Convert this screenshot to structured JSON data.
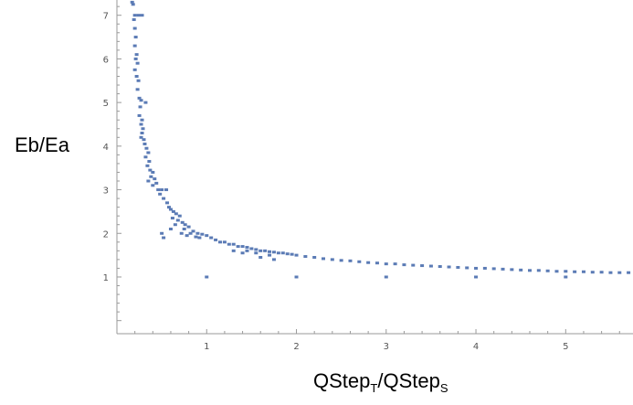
{
  "chart_data": {
    "type": "scatter",
    "title": "",
    "xlabel": {
      "base1": "QStep",
      "sub1": "T",
      "sep": "/",
      "base2": "QStep",
      "sub2": "S"
    },
    "ylabel": "Eb/Ea",
    "xlim": [
      0,
      5.75
    ],
    "ylim": [
      -0.3,
      7.35
    ],
    "xticks": [
      "1",
      "2",
      "3",
      "4",
      "5"
    ],
    "yticks": [
      "1",
      "2",
      "3",
      "4",
      "5",
      "6",
      "7"
    ],
    "grid": false,
    "marker_color": "#5b7bb5",
    "series": [
      {
        "points": [
          [
            0.17,
            7.3
          ],
          [
            0.18,
            7.25
          ],
          [
            0.2,
            7.0
          ],
          [
            0.24,
            7.0
          ],
          [
            0.28,
            7.0
          ],
          [
            0.19,
            6.9
          ],
          [
            0.2,
            6.7
          ],
          [
            0.21,
            6.5
          ],
          [
            0.2,
            6.3
          ],
          [
            0.22,
            6.1
          ],
          [
            0.21,
            6.0
          ],
          [
            0.23,
            5.9
          ],
          [
            0.2,
            5.75
          ],
          [
            0.22,
            5.6
          ],
          [
            0.24,
            5.5
          ],
          [
            0.23,
            5.3
          ],
          [
            0.25,
            5.1
          ],
          [
            0.27,
            5.05
          ],
          [
            0.32,
            5.0
          ],
          [
            0.26,
            4.9
          ],
          [
            0.25,
            4.7
          ],
          [
            0.28,
            4.6
          ],
          [
            0.27,
            4.5
          ],
          [
            0.29,
            4.4
          ],
          [
            0.28,
            4.3
          ],
          [
            0.27,
            4.2
          ],
          [
            0.3,
            4.15
          ],
          [
            0.31,
            4.05
          ],
          [
            0.33,
            3.95
          ],
          [
            0.35,
            3.85
          ],
          [
            0.32,
            3.75
          ],
          [
            0.36,
            3.65
          ],
          [
            0.34,
            3.55
          ],
          [
            0.37,
            3.45
          ],
          [
            0.4,
            3.4
          ],
          [
            0.38,
            3.3
          ],
          [
            0.35,
            3.2
          ],
          [
            0.42,
            3.25
          ],
          [
            0.44,
            3.15
          ],
          [
            0.4,
            3.1
          ],
          [
            0.46,
            3.0
          ],
          [
            0.5,
            3.0
          ],
          [
            0.55,
            3.0
          ],
          [
            0.48,
            2.9
          ],
          [
            0.52,
            2.8
          ],
          [
            0.56,
            2.7
          ],
          [
            0.58,
            2.6
          ],
          [
            0.6,
            2.55
          ],
          [
            0.63,
            2.5
          ],
          [
            0.66,
            2.45
          ],
          [
            0.7,
            2.4
          ],
          [
            0.62,
            2.35
          ],
          [
            0.68,
            2.3
          ],
          [
            0.73,
            2.25
          ],
          [
            0.76,
            2.2
          ],
          [
            0.8,
            2.15
          ],
          [
            0.75,
            2.1
          ],
          [
            0.85,
            2.05
          ],
          [
            0.9,
            2.0
          ],
          [
            0.95,
            1.98
          ],
          [
            0.5,
            2.0
          ],
          [
            0.52,
            1.9
          ],
          [
            0.6,
            2.1
          ],
          [
            0.65,
            2.2
          ],
          [
            0.72,
            2.0
          ],
          [
            0.78,
            1.95
          ],
          [
            0.82,
            2.0
          ],
          [
            0.88,
            1.92
          ],
          [
            0.92,
            1.9
          ],
          [
            1.0,
            1.95
          ],
          [
            1.05,
            1.9
          ],
          [
            1.1,
            1.85
          ],
          [
            1.15,
            1.8
          ],
          [
            1.2,
            1.8
          ],
          [
            1.25,
            1.75
          ],
          [
            1.3,
            1.75
          ],
          [
            1.35,
            1.7
          ],
          [
            1.4,
            1.7
          ],
          [
            1.45,
            1.68
          ],
          [
            1.5,
            1.65
          ],
          [
            1.55,
            1.63
          ],
          [
            1.6,
            1.6
          ],
          [
            1.65,
            1.6
          ],
          [
            1.7,
            1.58
          ],
          [
            1.75,
            1.57
          ],
          [
            1.8,
            1.55
          ],
          [
            1.85,
            1.55
          ],
          [
            1.9,
            1.53
          ],
          [
            1.95,
            1.52
          ],
          [
            2.0,
            1.5
          ],
          [
            1.3,
            1.6
          ],
          [
            1.4,
            1.55
          ],
          [
            1.6,
            1.45
          ],
          [
            1.7,
            1.5
          ],
          [
            1.75,
            1.4
          ],
          [
            1.45,
            1.6
          ],
          [
            1.55,
            1.55
          ],
          [
            2.1,
            1.47
          ],
          [
            2.2,
            1.45
          ],
          [
            2.3,
            1.42
          ],
          [
            2.4,
            1.4
          ],
          [
            2.5,
            1.38
          ],
          [
            2.6,
            1.37
          ],
          [
            2.7,
            1.35
          ],
          [
            2.8,
            1.33
          ],
          [
            2.9,
            1.32
          ],
          [
            3.0,
            1.3
          ],
          [
            3.1,
            1.3
          ],
          [
            3.2,
            1.28
          ],
          [
            3.3,
            1.27
          ],
          [
            3.4,
            1.26
          ],
          [
            3.5,
            1.25
          ],
          [
            3.6,
            1.24
          ],
          [
            3.7,
            1.23
          ],
          [
            3.8,
            1.22
          ],
          [
            3.9,
            1.21
          ],
          [
            4.0,
            1.2
          ],
          [
            4.1,
            1.2
          ],
          [
            4.2,
            1.19
          ],
          [
            4.3,
            1.18
          ],
          [
            4.4,
            1.17
          ],
          [
            4.5,
            1.16
          ],
          [
            4.6,
            1.15
          ],
          [
            4.7,
            1.15
          ],
          [
            4.8,
            1.14
          ],
          [
            4.9,
            1.13
          ],
          [
            5.0,
            1.13
          ],
          [
            5.1,
            1.12
          ],
          [
            5.2,
            1.12
          ],
          [
            5.3,
            1.11
          ],
          [
            5.4,
            1.11
          ],
          [
            5.5,
            1.1
          ],
          [
            5.6,
            1.1
          ],
          [
            5.7,
            1.1
          ],
          [
            1.0,
            1.0
          ],
          [
            2.0,
            1.0
          ],
          [
            3.0,
            1.0
          ],
          [
            4.0,
            1.0
          ],
          [
            5.0,
            1.0
          ]
        ]
      }
    ]
  }
}
